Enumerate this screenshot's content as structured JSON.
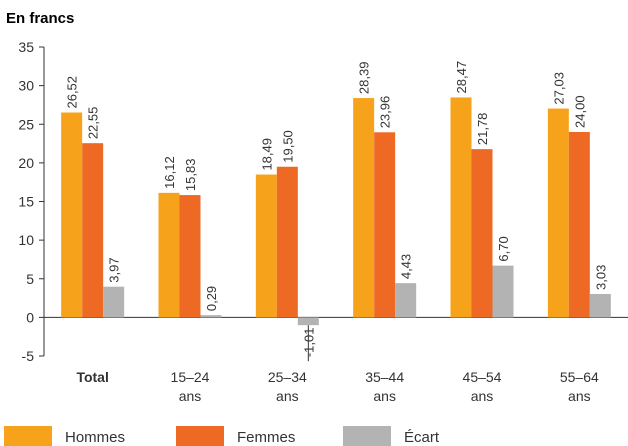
{
  "chart_data": {
    "type": "bar",
    "title": "En francs",
    "xlabel": "",
    "ylabel": "",
    "ylim": [
      -5,
      35
    ],
    "yticks": [
      35,
      30,
      25,
      20,
      15,
      10,
      5,
      0,
      -5
    ],
    "grid": false,
    "legend_position": "bottom",
    "categories": [
      [
        "Total"
      ],
      [
        "15–24",
        "ans"
      ],
      [
        "25–34",
        "ans"
      ],
      [
        "35–44",
        "ans"
      ],
      [
        "45–54",
        "ans"
      ],
      [
        "55–64",
        "ans"
      ]
    ],
    "series": [
      {
        "name": "Hommes",
        "color": "#F7A21B",
        "values": [
          26.52,
          16.12,
          18.49,
          28.39,
          28.47,
          27.03
        ],
        "labels": [
          "26,52",
          "16,12",
          "18,49",
          "28,39",
          "28,47",
          "27,03"
        ]
      },
      {
        "name": "Femmes",
        "color": "#EE6A24",
        "values": [
          22.55,
          15.83,
          19.5,
          23.96,
          21.78,
          24.0
        ],
        "labels": [
          "22,55",
          "15,83",
          "19,50",
          "23,96",
          "21,78",
          "24,00"
        ]
      },
      {
        "name": "Écart",
        "color": "#B3B3B3",
        "values": [
          3.97,
          0.29,
          -1.01,
          4.43,
          6.7,
          3.03
        ],
        "labels": [
          "3,97",
          "0,29",
          "-1,01",
          "4,43",
          "6,70",
          "3,03"
        ]
      }
    ]
  }
}
